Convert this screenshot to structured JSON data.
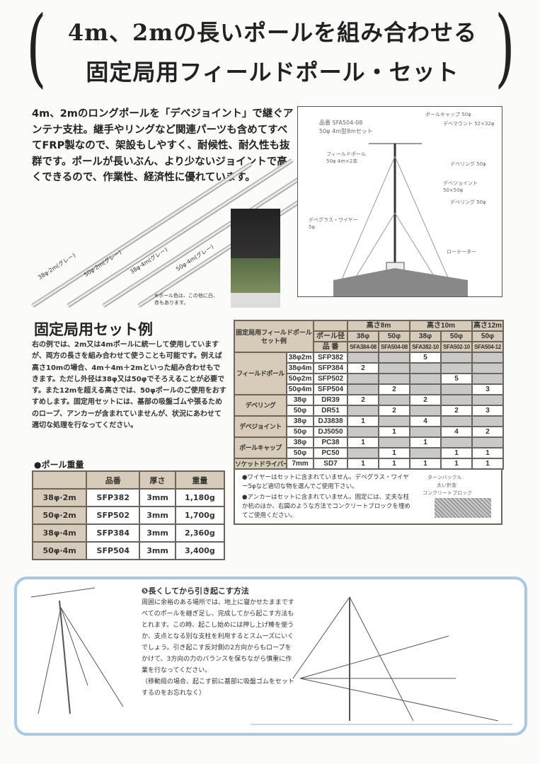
{
  "title": {
    "line1": "4m、2mの長いポールを組み合わせる",
    "line2": "固定局用フィールドポール・セット",
    "open_paren": "(",
    "close_paren": ")"
  },
  "intro": "4m、2mのロングポールを「デベジョイント」で継ぐアンテナ支柱。継手やリングなど関連パーツも含めてすべてFRP製なので、架設もしやすく、耐候性、耐久性も抜群です。ポールが長いぶん、より少ないジョイントで高くできるので、作業性、経済性に優れています。",
  "poles": [
    "38φ·2m(グレー)",
    "50φ·2m(グレー)",
    "38φ·4m(グレー)",
    "50φ·4m(グレー)"
  ],
  "pole_note": "※ポール色は、この他に白、赤もあります。",
  "diagram": {
    "code": "品番 SFA504-08",
    "desc": "50φ 4m型8mセット",
    "labels": [
      "ポールキャップ 50φ",
      "デベマウント 52×32φ",
      "フィールドポール 50φ 4m×2本",
      "デベリング 50φ",
      "デベジョイント 50×50φ",
      "デベリング 50φ",
      "デベグラス・ワイヤー 5φ",
      "ローテーター"
    ]
  },
  "section": {
    "title": "固定局用セット例",
    "text": "右の例では、2m又は4mポールに統一して使用していますが、両方の長さを組み合わせて使うことも可能です。例えば高さ10mの場合、4m＋4m＋2mといった組み合わせもできます。ただし外径は38φ又は50φでそろえることが必要です。また12mを超える高さでは、50φポールのご使用をおすすめします。固定用セットには、基部の吸盤ゴムや張るためのロープ、アンカーが含まれていませんが、状況にあわせて適切な処理を行なってください。"
  },
  "weight": {
    "title": "●ポール重量",
    "headers": [
      "",
      "品番",
      "厚さ",
      "重量"
    ],
    "rows": [
      [
        "38φ·2m",
        "SFP382",
        "3mm",
        "1,180g"
      ],
      [
        "50φ·2m",
        "SFP502",
        "3mm",
        "1,700g"
      ],
      [
        "38φ·4m",
        "SFP384",
        "3mm",
        "2,360g"
      ],
      [
        "50φ·4m",
        "SFP504",
        "3mm",
        "3,400g"
      ]
    ]
  },
  "sets": {
    "corner": "固定局用フィールドポールセット例",
    "dia_label": "ポール径",
    "code_label": "品 番",
    "heights": [
      "高さ8m",
      "高さ10m",
      "高さ12m"
    ],
    "dias": [
      "38φ",
      "50φ",
      "38φ",
      "50φ",
      "50φ"
    ],
    "codes": [
      "SFA384-08",
      "SFA504-08",
      "SFA382-10",
      "SFA502-10",
      "SFA504-12"
    ],
    "groups": [
      {
        "name": "フィールドポール",
        "rows": [
          [
            "38φ2m",
            "SFP382",
            "",
            "",
            "5",
            "",
            ""
          ],
          [
            "38φ4m",
            "SFP384",
            "2",
            "",
            "",
            "",
            ""
          ],
          [
            "50φ2m",
            "SFP502",
            "",
            "",
            "",
            "5",
            ""
          ],
          [
            "50φ4m",
            "SFP504",
            "",
            "2",
            "",
            "",
            "3"
          ]
        ]
      },
      {
        "name": "デベリング",
        "rows": [
          [
            "38φ",
            "DR39",
            "2",
            "",
            "2",
            "",
            ""
          ],
          [
            "50φ",
            "DR51",
            "",
            "2",
            "",
            "2",
            "3"
          ]
        ]
      },
      {
        "name": "デベジョイント",
        "rows": [
          [
            "38φ",
            "DJ3838",
            "1",
            "",
            "4",
            "",
            ""
          ],
          [
            "50φ",
            "DJ5050",
            "",
            "1",
            "",
            "4",
            "2"
          ]
        ]
      },
      {
        "name": "ポールキャップ",
        "rows": [
          [
            "38φ",
            "PC38",
            "1",
            "",
            "1",
            "",
            ""
          ],
          [
            "50φ",
            "PC50",
            "",
            "1",
            "",
            "1",
            "1"
          ]
        ]
      },
      {
        "name": "ソケットドライバー",
        "rows": [
          [
            "7mm",
            "SD7",
            "1",
            "1",
            "1",
            "1",
            "1"
          ]
        ]
      }
    ],
    "notes": [
      "●ワイヤーはセットに含まれていません。デベグラス・ワイヤー5φなど適切な物を選んでご使用下さい。",
      "●アンカーはセットに含まれていません。固定には、丈夫な柱か杭のほか、右図のような方法でコンクリートブロックを埋めてご使用ください。"
    ],
    "anchor_labels": [
      "ターンバックル",
      "太い針金",
      "コンクリートブロック"
    ]
  },
  "bottom": {
    "title": "❺長くしてから引き起こす方法",
    "text": "周囲に余裕のある場所では、地上に寝かせたままですべてのポールを継ぎ足し、完成してから起こす方法もとれます。この時、起こし始めには押し上げ棒を使うか、支点となる別な支柱を利用するとスムーズにいくでしょう。引き起こす反対側の2方向からもロープをかけて、3方向の力のバランスを保ちながら慎重に作業を行なってください。",
    "note": "（移動局の場合、起こす前に基部に吸盤ゴムをセットするのをお忘れなく）"
  }
}
